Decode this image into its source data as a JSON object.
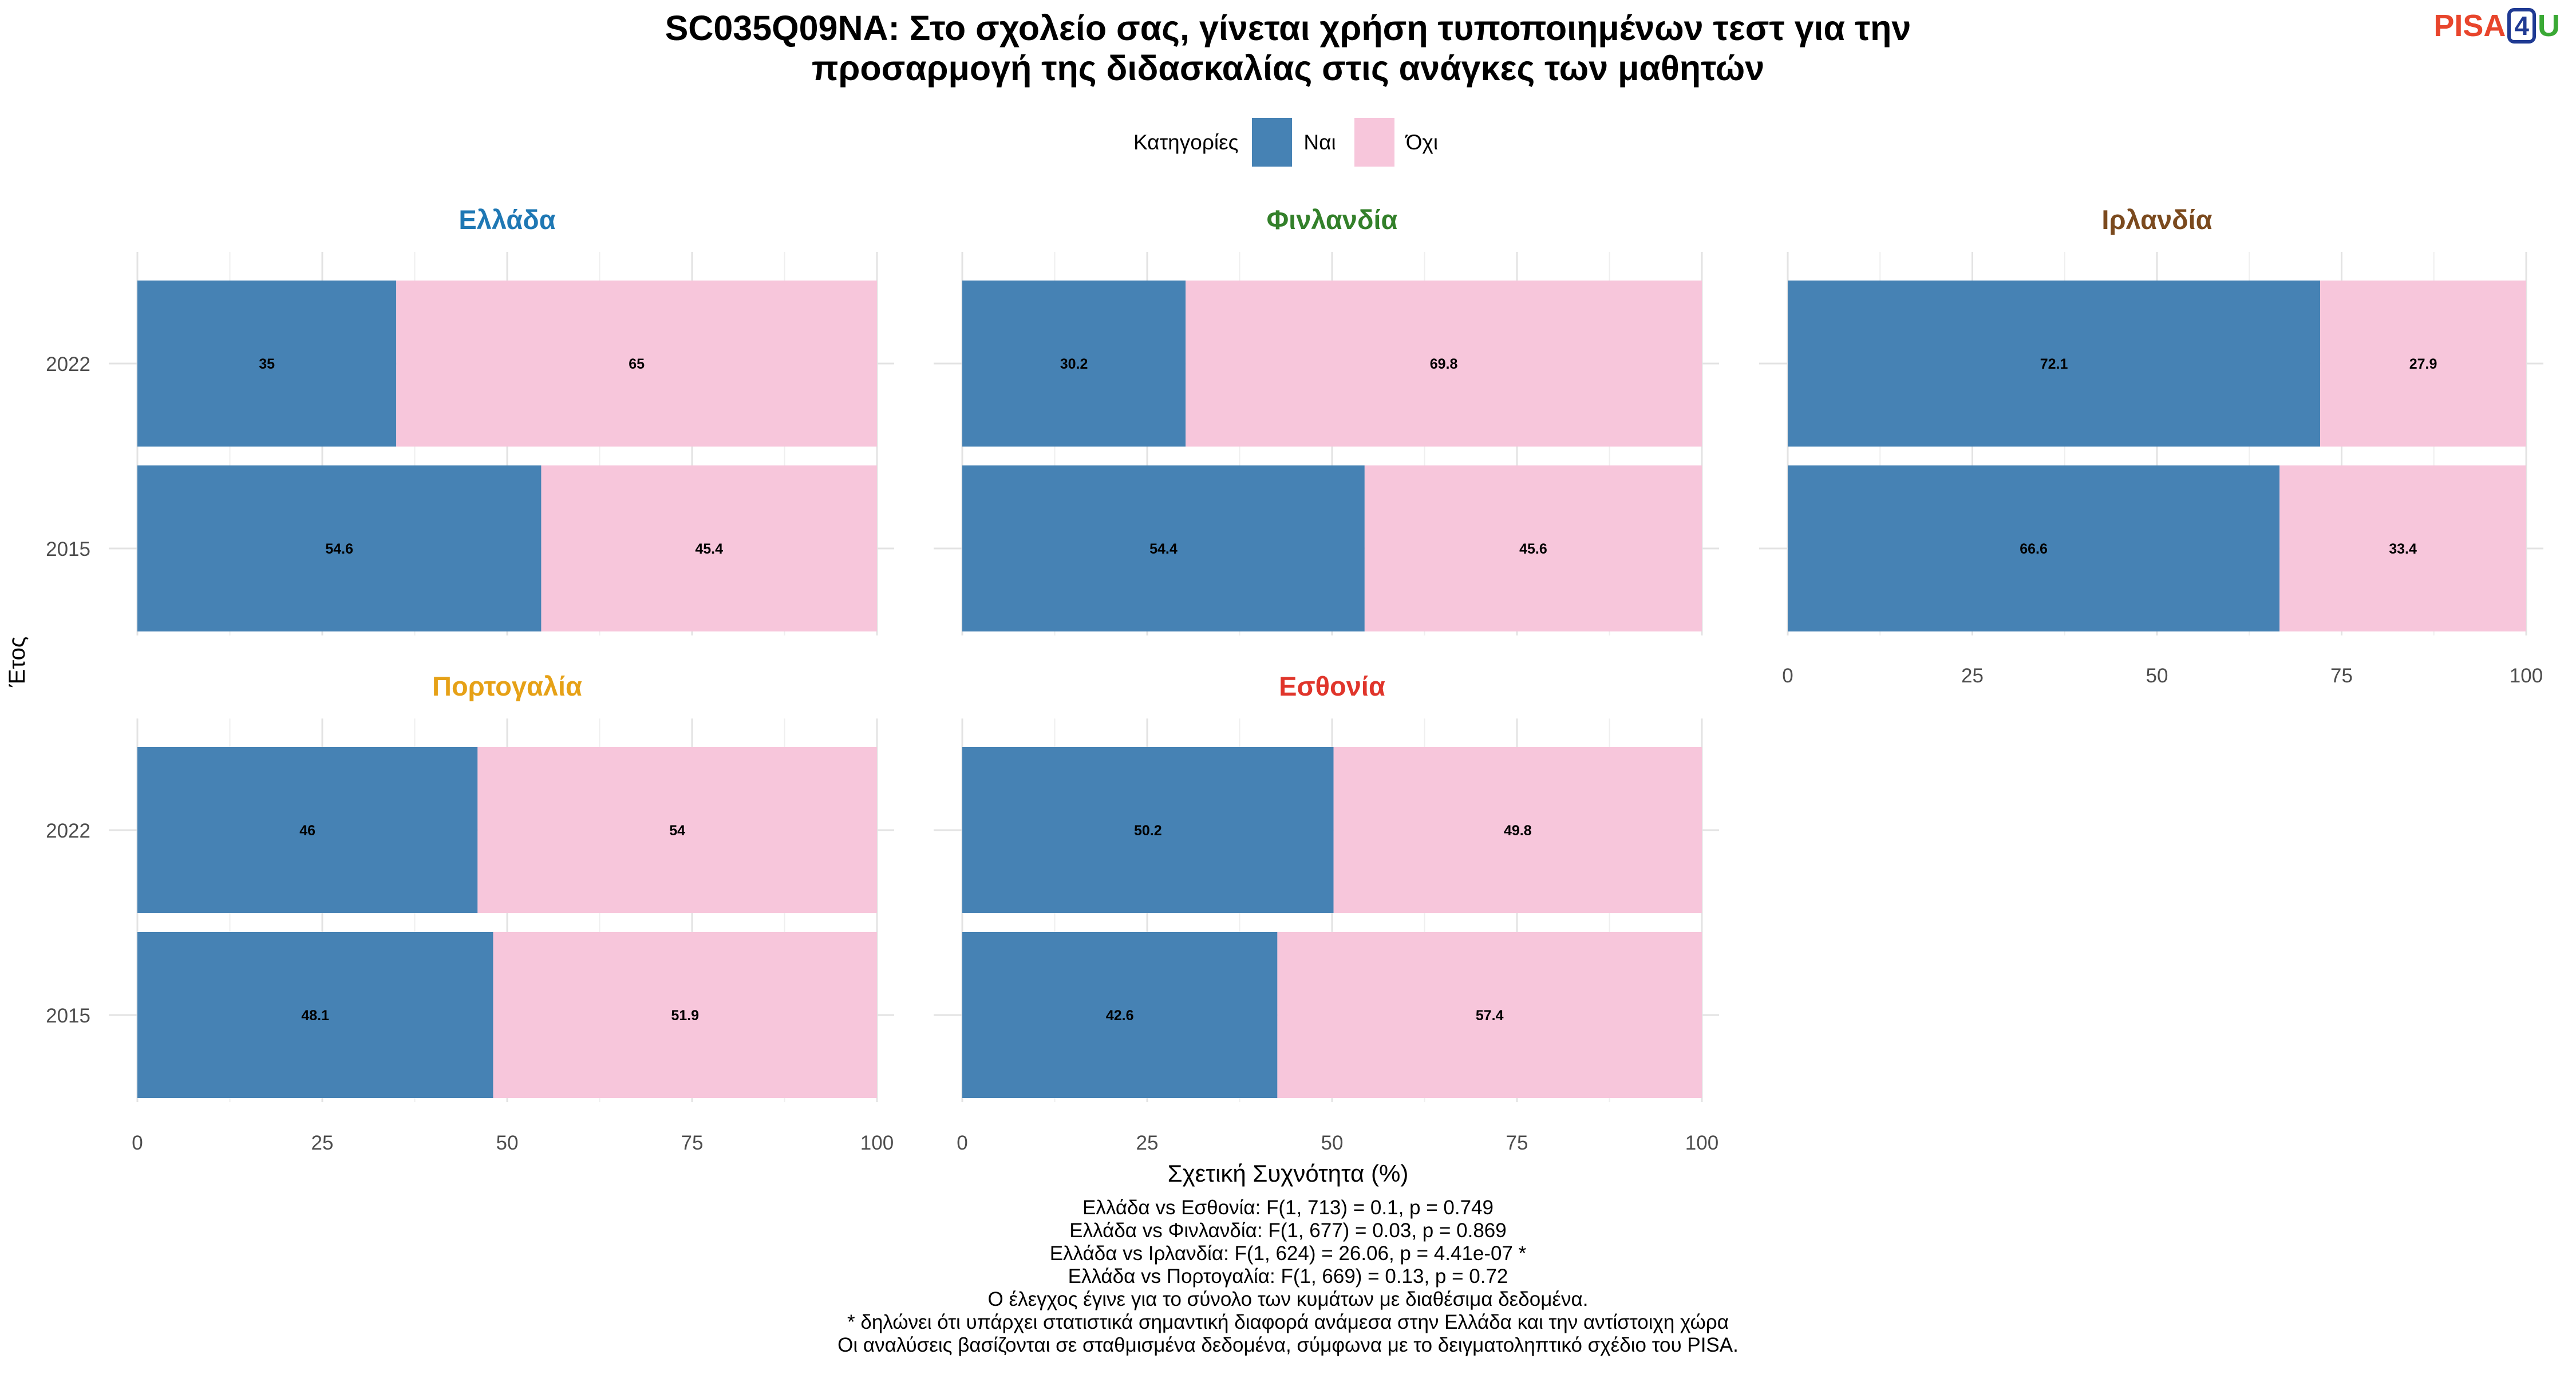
{
  "title": {
    "line1": "SC035Q09NA: Στο σχολείο σας, γίνεται χρήση τυποποιημένων τεστ για την",
    "line2": "προσαρμογή της διδασκαλίας στις ανάγκες των μαθητών"
  },
  "logo": {
    "part1": "PISA",
    "part2": "4",
    "part3": "U"
  },
  "legend": {
    "title": "Κατηγορίες",
    "items": [
      {
        "label": "Ναι",
        "color": "#4682B4"
      },
      {
        "label": "Όχι",
        "color": "#F7C6DB"
      }
    ]
  },
  "axis": {
    "ylabel": "Έτος",
    "xlabel": "Σχετική Συχνότητα (%)"
  },
  "footer": [
    "Ελλάδα vs Εσθονία: F(1, 713) = 0.1, p = 0.749",
    "Ελλάδα vs Φινλανδία: F(1, 677) = 0.03, p = 0.869",
    "Ελλάδα vs Ιρλανδία: F(1, 624) = 26.06, p = 4.41e-07 *",
    "Ελλάδα vs Πορτογαλία: F(1, 669) = 0.13, p = 0.72",
    "Ο έλεγχος έγινε για το σύνολο των κυμάτων με διαθέσιμα δεδομένα.",
    "* δηλώνει ότι υπάρχει στατιστικά σημαντική διαφορά ανάμεσα στην Ελλάδα και την αντίστοιχη χώρα",
    "Οι αναλύσεις βασίζονται σε σταθμισμένα δεδομένα, σύμφωνα με το δειγματοληπτικό σχέδιο του PISA."
  ],
  "chart_data": {
    "type": "bar",
    "orientation": "horizontal",
    "stacked": true,
    "categories": [
      "2022",
      "2015"
    ],
    "xlim": [
      0,
      100
    ],
    "xticks": [
      0,
      25,
      50,
      75,
      100
    ],
    "grid": true,
    "series_names": [
      "Ναι",
      "Όχι"
    ],
    "colors": {
      "Ναι": "#4682B4",
      "Όχι": "#F7C6DB"
    },
    "panels": [
      {
        "name": "Ελλάδα",
        "title_color": "#1F78B4",
        "series": [
          {
            "name": "Ναι",
            "values": [
              35,
              54.6
            ]
          },
          {
            "name": "Όχι",
            "values": [
              65,
              45.4
            ]
          }
        ]
      },
      {
        "name": "Φινλανδία",
        "title_color": "#33802A",
        "series": [
          {
            "name": "Ναι",
            "values": [
              30.2,
              54.4
            ]
          },
          {
            "name": "Όχι",
            "values": [
              69.8,
              45.6
            ]
          }
        ]
      },
      {
        "name": "Ιρλανδία",
        "title_color": "#7B4A1E",
        "series": [
          {
            "name": "Ναι",
            "values": [
              72.1,
              66.6
            ]
          },
          {
            "name": "Όχι",
            "values": [
              27.9,
              33.4
            ]
          }
        ]
      },
      {
        "name": "Πορτογαλία",
        "title_color": "#E6A117",
        "series": [
          {
            "name": "Ναι",
            "values": [
              46,
              48.1
            ]
          },
          {
            "name": "Όχι",
            "values": [
              54,
              51.9
            ]
          }
        ]
      },
      {
        "name": "Εσθονία",
        "title_color": "#E0352B",
        "series": [
          {
            "name": "Ναι",
            "values": [
              50.2,
              42.6
            ]
          },
          {
            "name": "Όχι",
            "values": [
              49.8,
              57.4
            ]
          }
        ]
      }
    ]
  }
}
